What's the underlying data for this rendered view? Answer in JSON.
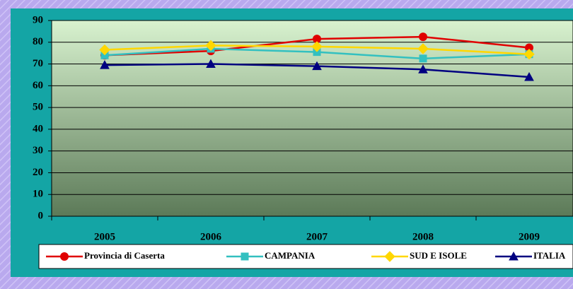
{
  "chart_data": {
    "type": "line",
    "categories": [
      "2005",
      "2006",
      "2007",
      "2008",
      "2009"
    ],
    "series": [
      {
        "name": "Provincia di Caserta",
        "color": "#e00000",
        "marker": "circle",
        "values": [
          74,
          76,
          81.5,
          82.5,
          77.5
        ]
      },
      {
        "name": "CAMPANIA",
        "color": "#33c0c0",
        "marker": "square",
        "values": [
          74,
          77,
          75.5,
          72.5,
          74.5
        ]
      },
      {
        "name": "SUD E ISOLE",
        "color": "#ffd700",
        "marker": "diamond",
        "values": [
          76.5,
          78.5,
          78,
          77,
          74.5
        ]
      },
      {
        "name": "ITALIA",
        "color": "#000080",
        "marker": "triangle",
        "values": [
          69.5,
          70,
          69,
          67.5,
          64
        ]
      }
    ],
    "ylim": [
      0,
      90
    ],
    "yticks": [
      0,
      10,
      20,
      30,
      40,
      50,
      60,
      70,
      80,
      90
    ],
    "grid": true,
    "legend": "bottom"
  }
}
